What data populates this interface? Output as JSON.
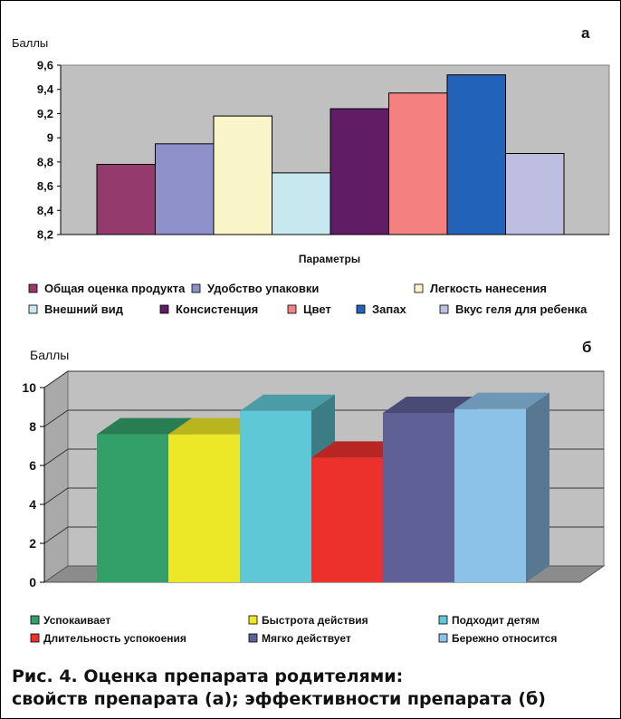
{
  "chart_data": [
    {
      "panel": "а",
      "type": "bar",
      "ylabel": "Баллы",
      "xlabel": "Параметры",
      "ylim": [
        8.2,
        9.6
      ],
      "yticks": [
        "8,2",
        "8,4",
        "8,6",
        "8,8",
        "9",
        "9,2",
        "9,4",
        "9,6"
      ],
      "grid": false,
      "legend_position": "bottom",
      "series": [
        {
          "name": "Общая оценка продукта",
          "value": 8.78,
          "color": "#943a6c"
        },
        {
          "name": "Удобство упаковки",
          "value": 8.95,
          "color": "#8d90c9"
        },
        {
          "name": "Легкость нанесения",
          "value": 9.18,
          "color": "#f9f5c8"
        },
        {
          "name": "Внешний вид",
          "value": 8.71,
          "color": "#c7e8ef"
        },
        {
          "name": "Консистенция",
          "value": 9.24,
          "color": "#611c66"
        },
        {
          "name": "Цвет",
          "value": 9.37,
          "color": "#f48080"
        },
        {
          "name": "Запах",
          "value": 9.52,
          "color": "#2362b9"
        },
        {
          "name": "Вкус геля для ребенка",
          "value": 8.87,
          "color": "#bebee0"
        }
      ]
    },
    {
      "panel": "б",
      "type": "bar",
      "ylabel": "Баллы",
      "ylim": [
        0,
        10
      ],
      "yticks": [
        "0",
        "2",
        "4",
        "6",
        "8",
        "10"
      ],
      "grid": true,
      "legend_position": "bottom",
      "series": [
        {
          "name": "Успокаивает",
          "value": 7.6,
          "color": "#33a06a"
        },
        {
          "name": "Быстрота действия",
          "value": 7.6,
          "color": "#ede827"
        },
        {
          "name": "Подходит детям",
          "value": 8.8,
          "color": "#5fc8d6"
        },
        {
          "name": "Длительность успокоения",
          "value": 6.4,
          "color": "#ec312d"
        },
        {
          "name": "Мягко действует",
          "value": 8.7,
          "color": "#5e6096"
        },
        {
          "name": "Бережно относится",
          "value": 8.9,
          "color": "#8cc1e8"
        }
      ]
    }
  ],
  "caption": {
    "line1": "Рис. 4. Оценка препарата родителями:",
    "line2": "свойств препарата (а); эффективности препарата (б)"
  }
}
